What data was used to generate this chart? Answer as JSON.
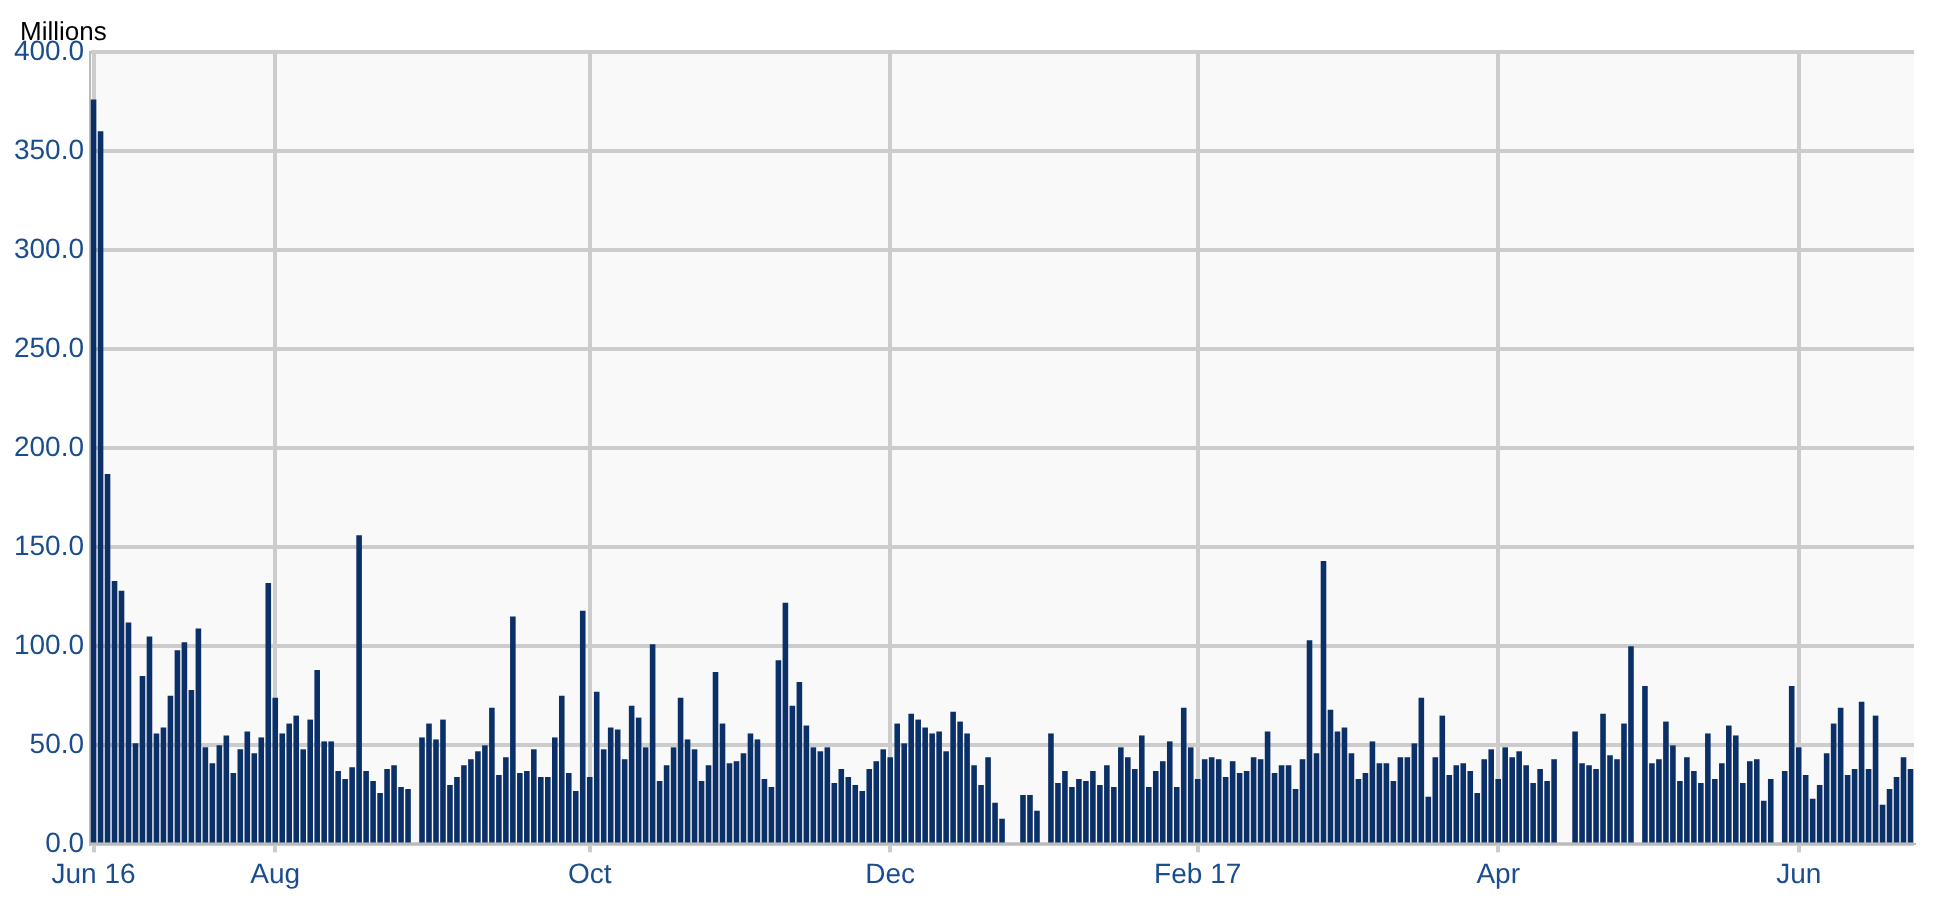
{
  "chart_data": {
    "type": "bar",
    "ylabel": "Millions",
    "categories": [
      "Jun 16",
      null,
      null,
      null,
      null,
      null,
      null,
      null,
      null,
      null,
      null,
      null,
      null,
      null,
      null,
      null,
      null,
      null,
      null,
      null,
      null,
      null,
      null,
      null,
      null,
      null,
      "Aug",
      null,
      null,
      null,
      null,
      null,
      null,
      null,
      null,
      null,
      null,
      null,
      null,
      null,
      null,
      null,
      null,
      null,
      null,
      null,
      null,
      null,
      null,
      null,
      null,
      null,
      null,
      null,
      null,
      null,
      null,
      null,
      null,
      null,
      null,
      null,
      null,
      null,
      null,
      null,
      null,
      null,
      null,
      null,
      null,
      "Oct",
      null,
      null,
      null,
      null,
      null,
      null,
      null,
      null,
      null,
      null,
      null,
      null,
      null,
      null,
      null,
      null,
      null,
      null,
      null,
      null,
      null,
      null,
      null,
      null,
      null,
      null,
      null,
      null,
      null,
      null,
      null,
      null,
      null,
      null,
      null,
      null,
      null,
      null,
      null,
      null,
      null,
      null,
      "Dec",
      null,
      null,
      null,
      null,
      null,
      null,
      null,
      null,
      null,
      null,
      null,
      null,
      null,
      null,
      null,
      null,
      null,
      null,
      null,
      null,
      null,
      null,
      null,
      null,
      null,
      null,
      null,
      null,
      null,
      null,
      null,
      null,
      null,
      null,
      null,
      null,
      null,
      null,
      null,
      null,
      null,
      null,
      null,
      "Feb 17",
      null,
      null,
      null,
      null,
      null,
      null,
      null,
      null,
      null,
      null,
      null,
      null,
      null,
      null,
      null,
      null,
      null,
      null,
      null,
      null,
      null,
      null,
      null,
      null,
      null,
      null,
      null,
      null,
      null,
      null,
      null,
      null,
      null,
      null,
      null,
      null,
      null,
      null,
      null,
      null,
      null,
      null,
      "Apr",
      null,
      null,
      null,
      null,
      null,
      null,
      null,
      null,
      null,
      null,
      null,
      null,
      null,
      null,
      null,
      null,
      null,
      null,
      null,
      null,
      null,
      null,
      null,
      null,
      null,
      null,
      null,
      null,
      null,
      null,
      null,
      null,
      null,
      null,
      null,
      null,
      null,
      null,
      null,
      null,
      null,
      null,
      "Jun",
      null,
      null,
      null,
      null,
      null,
      null,
      null,
      null,
      null,
      null,
      null,
      null,
      null,
      null,
      null,
      null
    ],
    "values": [
      376,
      360,
      187,
      133,
      128,
      112,
      51,
      85,
      105,
      56,
      59,
      75,
      98,
      102,
      78,
      109,
      49,
      41,
      50,
      55,
      36,
      48,
      57,
      46,
      54,
      132,
      74,
      56,
      61,
      65,
      48,
      63,
      88,
      52,
      52,
      37,
      33,
      39,
      156,
      37,
      32,
      26,
      38,
      40,
      29,
      28,
      null,
      54,
      61,
      53,
      63,
      30,
      34,
      40,
      43,
      47,
      50,
      69,
      35,
      44,
      115,
      36,
      37,
      48,
      34,
      34,
      54,
      75,
      36,
      27,
      118,
      34,
      77,
      48,
      59,
      58,
      43,
      70,
      64,
      49,
      101,
      32,
      40,
      49,
      74,
      53,
      48,
      32,
      40,
      87,
      61,
      41,
      42,
      46,
      56,
      53,
      33,
      29,
      93,
      122,
      70,
      82,
      60,
      49,
      47,
      49,
      31,
      38,
      34,
      30,
      27,
      38,
      42,
      48,
      44,
      61,
      51,
      66,
      63,
      59,
      56,
      57,
      47,
      67,
      62,
      56,
      40,
      30,
      44,
      21,
      13,
      null,
      null,
      25,
      25,
      17,
      null,
      56,
      31,
      37,
      29,
      33,
      32,
      37,
      30,
      40,
      29,
      49,
      44,
      38,
      55,
      29,
      37,
      42,
      52,
      29,
      69,
      49,
      33,
      43,
      44,
      43,
      34,
      42,
      36,
      37,
      44,
      43,
      57,
      36,
      40,
      40,
      28,
      43,
      103,
      46,
      143,
      68,
      57,
      59,
      46,
      33,
      36,
      52,
      41,
      41,
      32,
      44,
      44,
      51,
      74,
      24,
      44,
      65,
      35,
      40,
      41,
      37,
      26,
      43,
      48,
      33,
      49,
      44,
      47,
      40,
      31,
      38,
      32,
      43,
      null,
      null,
      57,
      41,
      40,
      38,
      66,
      45,
      43,
      61,
      100,
      null,
      80,
      41,
      43,
      62,
      50,
      32,
      44,
      37,
      31,
      56,
      33,
      41,
      60,
      55,
      31,
      42,
      43,
      22,
      33,
      null,
      37,
      80,
      49,
      35,
      23,
      30,
      46,
      61,
      69,
      35,
      38,
      72,
      38,
      65,
      20,
      28,
      34,
      44,
      38
    ],
    "color": "#0b3068",
    "ylim": [
      0,
      400
    ],
    "yticks": [
      {
        "value": 0,
        "label": "0.0"
      },
      {
        "value": 50,
        "label": "50.0"
      },
      {
        "value": 100,
        "label": "100.0"
      },
      {
        "value": 150,
        "label": "150.0"
      },
      {
        "value": 200,
        "label": "200.0"
      },
      {
        "value": 250,
        "label": "250.0"
      },
      {
        "value": 300,
        "label": "300.0"
      },
      {
        "value": 350,
        "label": "350.0"
      },
      {
        "value": 400,
        "label": "400.0"
      }
    ],
    "grid": true
  }
}
